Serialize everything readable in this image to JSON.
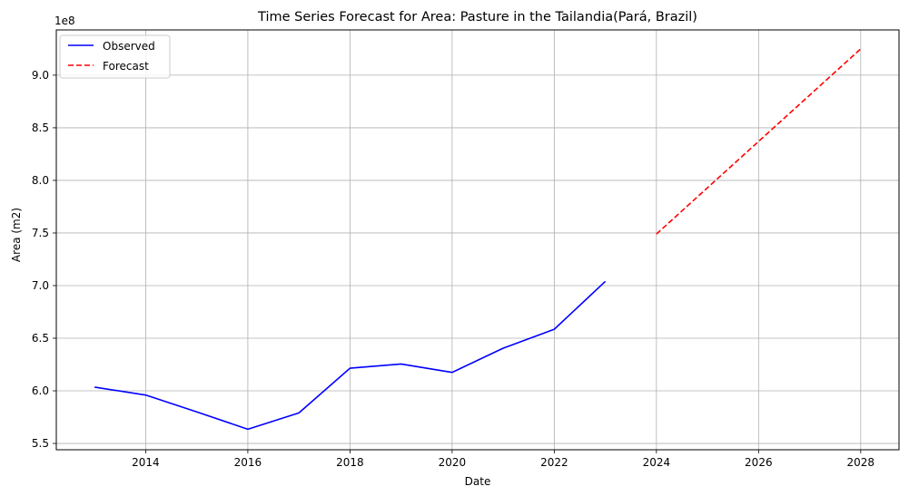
{
  "chart_data": {
    "type": "line",
    "title": "Time Series Forecast for Area: Pasture in the Tailandia(Pará, Brazil)",
    "xlabel": "Date",
    "ylabel": "Area (m2)",
    "y_offset_label": "1e8",
    "y_scale": 100000000,
    "xlim": [
      2012.25,
      2028.75
    ],
    "ylim": [
      5.44,
      9.43
    ],
    "x_ticks": [
      2014,
      2016,
      2018,
      2020,
      2022,
      2024,
      2026,
      2028
    ],
    "x_tick_labels": [
      "2014",
      "2016",
      "2018",
      "2020",
      "2022",
      "2024",
      "2026",
      "2028"
    ],
    "y_ticks": [
      5.5,
      6.0,
      6.5,
      7.0,
      7.5,
      8.0,
      8.5,
      9.0
    ],
    "y_tick_labels": [
      "5.5",
      "6.0",
      "6.5",
      "7.0",
      "7.5",
      "8.0",
      "8.5",
      "9.0"
    ],
    "grid": true,
    "legend_position": "top-left",
    "series": [
      {
        "name": "Observed",
        "color": "#0000ff",
        "style": "solid",
        "x": [
          2013,
          2014,
          2015,
          2016,
          2017,
          2018,
          2019,
          2020,
          2021,
          2022,
          2023
        ],
        "y": [
          6.035,
          5.96,
          5.8,
          5.635,
          5.79,
          6.215,
          6.255,
          6.175,
          6.405,
          6.585,
          7.04
        ]
      },
      {
        "name": "Forecast",
        "color": "#ff0000",
        "style": "dashed",
        "x": [
          2024,
          2025,
          2026,
          2027,
          2028
        ],
        "y": [
          7.49,
          7.93,
          8.37,
          8.81,
          9.25
        ]
      }
    ]
  }
}
